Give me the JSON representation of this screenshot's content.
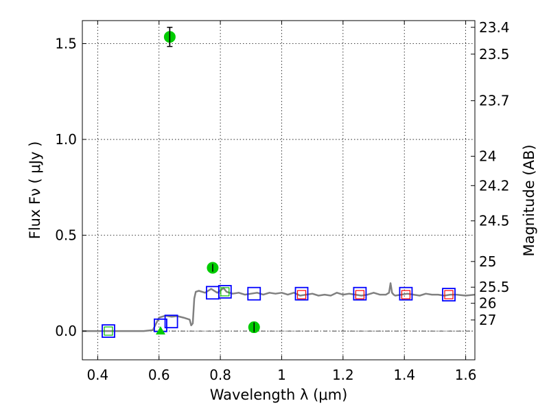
{
  "chart_data": {
    "type": "scatter",
    "xlabel": "Wavelength  λ (μm)",
    "ylabel": "Flux  Fν  ( μJy )",
    "y2label": "Magnitude (AB)",
    "xlim": [
      0.35,
      1.63
    ],
    "ylim": [
      -0.15,
      1.62
    ],
    "grid": true,
    "x_ticks": [
      0.4,
      0.6,
      0.8,
      1.0,
      1.2,
      1.4,
      1.6
    ],
    "x_tick_labels": [
      "0.4",
      "0.6",
      "0.8",
      "1",
      "1.2",
      "1.4",
      "1.6"
    ],
    "y_ticks": [
      0.0,
      0.5,
      1.0,
      1.5
    ],
    "y_tick_labels": [
      "0.0",
      "0.5",
      "1.0",
      "1.5"
    ],
    "mag_ticks": [
      {
        "label": "23.4",
        "flux": 1.585
      },
      {
        "label": "23.5",
        "flux": 1.445
      },
      {
        "label": "23.7",
        "flux": 1.202
      },
      {
        "label": "24",
        "flux": 0.912
      },
      {
        "label": "24.2",
        "flux": 0.759
      },
      {
        "label": "24.5",
        "flux": 0.575
      },
      {
        "label": "25",
        "flux": 0.363
      },
      {
        "label": "25.5",
        "flux": 0.229
      },
      {
        "label": "26",
        "flux": 0.145
      },
      {
        "label": "27",
        "flux": 0.058
      }
    ],
    "model_sed": {
      "color": "#808080",
      "x": [
        0.35,
        0.45,
        0.5,
        0.55,
        0.58,
        0.6,
        0.62,
        0.64,
        0.66,
        0.68,
        0.7,
        0.705,
        0.71,
        0.715,
        0.72,
        0.73,
        0.75,
        0.77,
        0.79,
        0.8,
        0.81,
        0.82,
        0.84,
        0.86,
        0.88,
        0.9,
        0.92,
        0.94,
        0.96,
        0.98,
        1.0,
        1.02,
        1.04,
        1.06,
        1.08,
        1.1,
        1.12,
        1.14,
        1.16,
        1.18,
        1.2,
        1.22,
        1.24,
        1.26,
        1.28,
        1.3,
        1.32,
        1.34,
        1.35,
        1.355,
        1.36,
        1.365,
        1.37,
        1.39,
        1.41,
        1.43,
        1.45,
        1.47,
        1.49,
        1.51,
        1.53,
        1.55,
        1.57,
        1.6,
        1.63
      ],
      "y": [
        0.0,
        0.0,
        0.0,
        0.0,
        0.005,
        0.07,
        0.08,
        0.075,
        0.078,
        0.07,
        0.06,
        0.03,
        0.04,
        0.17,
        0.205,
        0.21,
        0.2,
        0.22,
        0.2,
        0.21,
        0.225,
        0.205,
        0.195,
        0.2,
        0.19,
        0.195,
        0.2,
        0.19,
        0.2,
        0.195,
        0.2,
        0.19,
        0.2,
        0.185,
        0.19,
        0.195,
        0.185,
        0.19,
        0.185,
        0.2,
        0.19,
        0.195,
        0.19,
        0.185,
        0.19,
        0.2,
        0.19,
        0.19,
        0.2,
        0.25,
        0.2,
        0.19,
        0.185,
        0.19,
        0.195,
        0.19,
        0.185,
        0.195,
        0.19,
        0.19,
        0.185,
        0.19,
        0.19,
        0.185,
        0.19
      ]
    },
    "series": [
      {
        "name": "model photometry (blue squares)",
        "marker": "square",
        "color": "#0000ff",
        "x": [
          0.435,
          0.605,
          0.64,
          0.775,
          0.815,
          0.91,
          1.065,
          1.255,
          1.405,
          1.545
        ],
        "y": [
          0.0,
          0.03,
          0.05,
          0.2,
          0.205,
          0.195,
          0.195,
          0.195,
          0.195,
          0.19
        ]
      },
      {
        "name": "inner red squares",
        "marker": "square",
        "color": "#ff0000",
        "x": [
          1.065,
          1.255,
          1.405,
          1.545
        ],
        "y": [
          0.19,
          0.19,
          0.19,
          0.19
        ]
      },
      {
        "name": "inner green squares",
        "marker": "square",
        "color": "#00bb00",
        "x": [
          0.435,
          0.815
        ],
        "y": [
          0.0,
          0.205
        ]
      },
      {
        "name": "observed flux",
        "marker": "circle",
        "color": "#00cc00",
        "x": [
          0.635,
          0.775,
          0.91
        ],
        "y": [
          1.535,
          0.33,
          0.02
        ],
        "yerr": [
          0.05,
          0.02,
          0.025
        ]
      },
      {
        "name": "upper limit",
        "marker": "triangle",
        "color": "#00cc00",
        "x": [
          0.605
        ],
        "y": [
          0.0
        ]
      }
    ]
  }
}
